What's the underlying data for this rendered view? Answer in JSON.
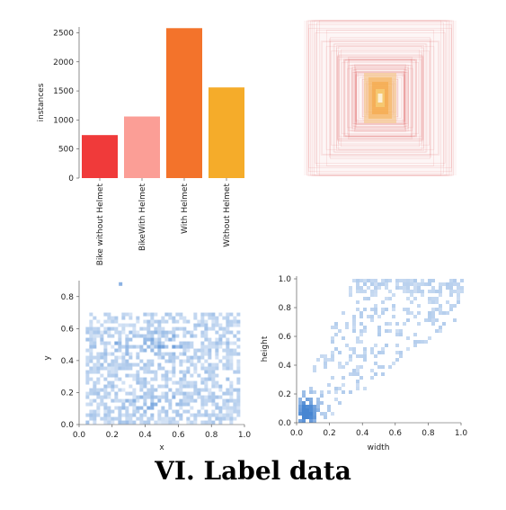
{
  "caption": "VI. Label data",
  "chart_data": [
    {
      "type": "bar",
      "categories": [
        "Bike without Helmet",
        "BikeWith Helmet",
        "With Helmet",
        "Without Helmet"
      ],
      "values": [
        740,
        1060,
        2580,
        1560
      ],
      "colors": [
        "#f03a3a",
        "#fb9e96",
        "#f3732b",
        "#f5ac2a"
      ],
      "ylabel": "instances",
      "yticks": [
        0,
        500,
        1000,
        1500,
        2000,
        2500
      ],
      "ylim": [
        0,
        2600
      ]
    },
    {
      "type": "heatmap",
      "description_type": "overlaid label boxes centered at image center",
      "box_color": "#d94848",
      "center_color": "#f5b443"
    },
    {
      "type": "heatmap",
      "xlabel": "x",
      "ylabel": "y",
      "xlim": [
        0,
        1
      ],
      "ylim": [
        0,
        0.9
      ],
      "xticks": [
        0.0,
        0.2,
        0.4,
        0.6,
        0.8,
        1.0
      ],
      "yticks": [
        0.0,
        0.2,
        0.4,
        0.6,
        0.8
      ],
      "xtick_labels": [
        "0.0",
        "0.2",
        "0.4",
        "0.6",
        "0.8",
        "1.0"
      ],
      "ytick_labels": [
        "0.0",
        "0.2",
        "0.4",
        "0.6",
        "0.8"
      ],
      "hotspots": [
        {
          "x": 0.5,
          "y": 0.52,
          "weight": 1.0
        },
        {
          "x": 0.45,
          "y": 0.15,
          "weight": 0.8
        },
        {
          "x": 0.25,
          "y": 0.5,
          "weight": 0.5
        }
      ],
      "x_range": [
        0.04,
        0.97
      ],
      "y_range": [
        0.02,
        0.7
      ],
      "color": "#3d7fd0"
    },
    {
      "type": "heatmap",
      "xlabel": "width",
      "ylabel": "height",
      "xlim": [
        0,
        1
      ],
      "ylim": [
        0,
        1
      ],
      "xticks": [
        0.0,
        0.2,
        0.4,
        0.6,
        0.8,
        1.0
      ],
      "yticks": [
        0.0,
        0.2,
        0.4,
        0.6,
        0.8,
        1.0
      ],
      "xtick_labels": [
        "0.0",
        "0.2",
        "0.4",
        "0.6",
        "0.8",
        "1.0"
      ],
      "ytick_labels": [
        "0.0",
        "0.2",
        "0.4",
        "0.6",
        "0.8",
        "1.0"
      ],
      "hotspot": {
        "x": 0.05,
        "y": 0.08
      },
      "color": "#3d7fd0"
    }
  ]
}
